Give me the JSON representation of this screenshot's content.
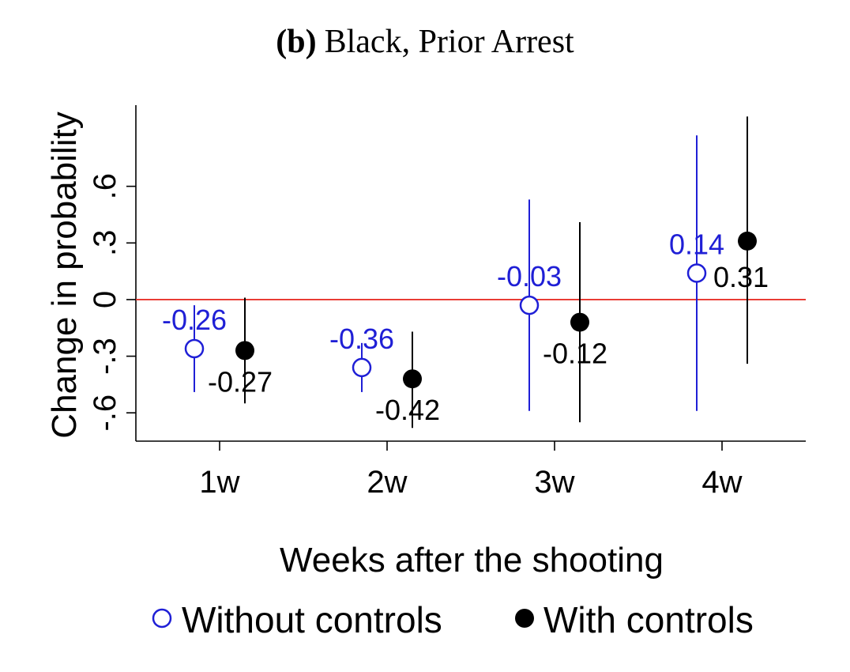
{
  "chart_data": {
    "type": "scatter",
    "title_prefix": "(b)",
    "title": "Black, Prior Arrest",
    "xlabel": "Weeks after the shooting",
    "ylabel": "Change in probability",
    "categories": [
      "1w",
      "2w",
      "3w",
      "4w"
    ],
    "yticks": [
      {
        "value": -0.6,
        "label": "-.6"
      },
      {
        "value": -0.3,
        "label": "-.3"
      },
      {
        "value": 0,
        "label": "0"
      },
      {
        "value": 0.3,
        "label": ".3"
      },
      {
        "value": 0.6,
        "label": ".6"
      }
    ],
    "ylim": [
      -0.75,
      1.03
    ],
    "reference_line": {
      "y": 0,
      "color": "#e8322a"
    },
    "legend_position": "bottom",
    "series": [
      {
        "name": "Without controls",
        "color": "#1f1fd6",
        "marker": "hollow-circle",
        "points": [
          {
            "category": "1w",
            "value": -0.26,
            "ci_low": -0.49,
            "ci_high": -0.03,
            "label": "-0.26"
          },
          {
            "category": "2w",
            "value": -0.36,
            "ci_low": -0.49,
            "ci_high": -0.23,
            "label": "-0.36"
          },
          {
            "category": "3w",
            "value": -0.03,
            "ci_low": -0.59,
            "ci_high": 0.53,
            "label": "-0.03"
          },
          {
            "category": "4w",
            "value": 0.14,
            "ci_low": -0.59,
            "ci_high": 0.87,
            "label": "0.14"
          }
        ]
      },
      {
        "name": "With controls",
        "color": "#000000",
        "marker": "filled-circle",
        "points": [
          {
            "category": "1w",
            "value": -0.27,
            "ci_low": -0.55,
            "ci_high": 0.01,
            "label": "-0.27"
          },
          {
            "category": "2w",
            "value": -0.42,
            "ci_low": -0.68,
            "ci_high": -0.17,
            "label": "-0.42"
          },
          {
            "category": "3w",
            "value": -0.12,
            "ci_low": -0.65,
            "ci_high": 0.41,
            "label": "-0.12"
          },
          {
            "category": "4w",
            "value": 0.31,
            "ci_low": -0.34,
            "ci_high": 0.97,
            "label": "0.31"
          }
        ]
      }
    ]
  }
}
